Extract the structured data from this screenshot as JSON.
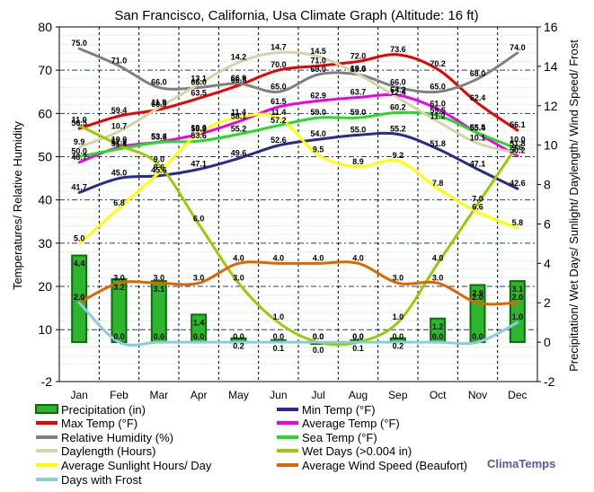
{
  "chart_data": {
    "type": "line",
    "title": "San Francisco, California, Usa Climate Graph (Altitude: 16 ft)",
    "ylabel_left": "Temperatures/ Relative Humidity",
    "ylabel_right": "Precipitation/ Wet Days/ Sunlight/ Daylength/ Wind Speed/ Frost",
    "ylim_left": [
      -2,
      80
    ],
    "ylim_right": [
      -2,
      16
    ],
    "yticks_left": [
      "-2",
      "10",
      "20",
      "30",
      "40",
      "50",
      "60",
      "70",
      "80"
    ],
    "yticks_right": [
      "-2",
      "0",
      "2",
      "4",
      "6",
      "8",
      "10",
      "12",
      "14",
      "16"
    ],
    "categories": [
      "Jan",
      "Feb",
      "Mar",
      "Apr",
      "May",
      "Jun",
      "Jul",
      "Aug",
      "Sep",
      "Oct",
      "Nov",
      "Dec"
    ],
    "bars": {
      "name": "Precipitation (in)",
      "color": "#2db52d",
      "values": [
        4.4,
        3.2,
        3.1,
        1.4,
        0.2,
        0.1,
        0.0,
        0.1,
        0.2,
        1.2,
        2.9,
        3.1
      ]
    },
    "series": [
      {
        "name": "Max Temp (°F)",
        "axis": "left",
        "color": "#ee0000",
        "values": [
          56.5,
          59.4,
          60.9,
          63.5,
          66.5,
          70.0,
          71.0,
          72.0,
          73.6,
          70.2,
          62.4,
          56.1
        ]
      },
      {
        "name": "Min Temp (°F)",
        "axis": "left",
        "color": "#2b2b8c",
        "values": [
          41.7,
          45.0,
          45.6,
          47.1,
          49.6,
          52.6,
          54.0,
          55.0,
          55.2,
          51.8,
          47.1,
          42.6
        ]
      },
      {
        "name": "Average Temp (°F)",
        "axis": "left",
        "color": "#ee00ee",
        "values": [
          48.7,
          52.2,
          53.4,
          55.2,
          58.1,
          61.5,
          62.9,
          63.7,
          64.2,
          61.0,
          55.4,
          50.2
        ]
      },
      {
        "name": "Relative Humidity (%)",
        "axis": "left",
        "color": "#808080",
        "values": [
          75.0,
          71.0,
          66.0,
          66.0,
          66.9,
          65.0,
          69.0,
          69.0,
          66.0,
          65.0,
          68.0,
          74.0
        ]
      },
      {
        "name": "Sea Temp (°F)",
        "axis": "left",
        "color": "#22dd22",
        "values": [
          50.0,
          51.8,
          53.3,
          53.6,
          55.2,
          57.2,
          59.0,
          59.0,
          60.2,
          59.5,
          55.5,
          51.8
        ]
      },
      {
        "name": "Daylength (Hours)",
        "axis": "right",
        "color": "#d4d4aa",
        "values": [
          9.9,
          10.7,
          11.9,
          13.1,
          14.2,
          14.7,
          14.5,
          13.6,
          12.4,
          11.2,
          10.1,
          9.6
        ]
      },
      {
        "name": "Wet Days (>0.004 in)",
        "axis": "right",
        "color": "#99cc00",
        "values": [
          11.0,
          10.0,
          9.0,
          6.0,
          3.0,
          1.0,
          0.0,
          0.0,
          1.0,
          4.0,
          7.0,
          10.0
        ]
      },
      {
        "name": "Average Sunlight Hours/ Day",
        "axis": "right",
        "color": "#ffff00",
        "values": [
          5.0,
          6.8,
          8.6,
          10.6,
          11.4,
          11.4,
          9.5,
          8.9,
          9.2,
          7.8,
          6.6,
          5.8
        ]
      },
      {
        "name": "Average Wind Speed (Beaufort)",
        "axis": "right",
        "color": "#dd6600",
        "values": [
          2.0,
          3.0,
          3.0,
          3.0,
          4.0,
          4.0,
          4.0,
          4.0,
          3.0,
          3.0,
          2.0,
          2.0
        ]
      },
      {
        "name": "Days with Frost",
        "axis": "right",
        "color": "#88ccdd",
        "values": [
          2.0,
          0.0,
          0.0,
          0.0,
          0.0,
          0.0,
          0.0,
          0.0,
          0.0,
          0.0,
          0.0,
          1.0
        ]
      }
    ],
    "legend_placement": "bottom",
    "grid": true
  },
  "brand": "ClimaTemps"
}
